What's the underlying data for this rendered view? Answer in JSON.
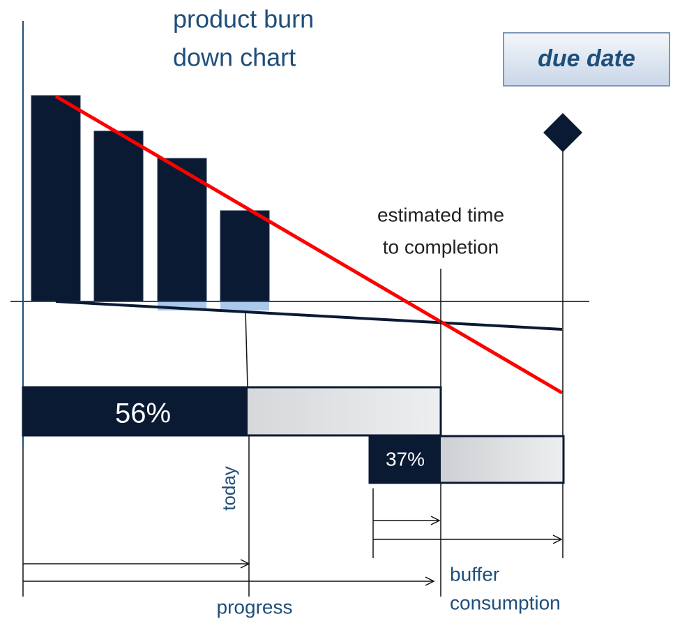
{
  "title": [
    "product burn",
    "down chart"
  ],
  "due_date": "due date",
  "estimate": [
    "estimated time",
    "to completion"
  ],
  "progress_bar": {
    "label": "56%"
  },
  "buffer_bar": {
    "label": "37%"
  },
  "today": "today",
  "buffer_consumption": [
    "buffer",
    "consumption"
  ],
  "progress": "progress"
}
